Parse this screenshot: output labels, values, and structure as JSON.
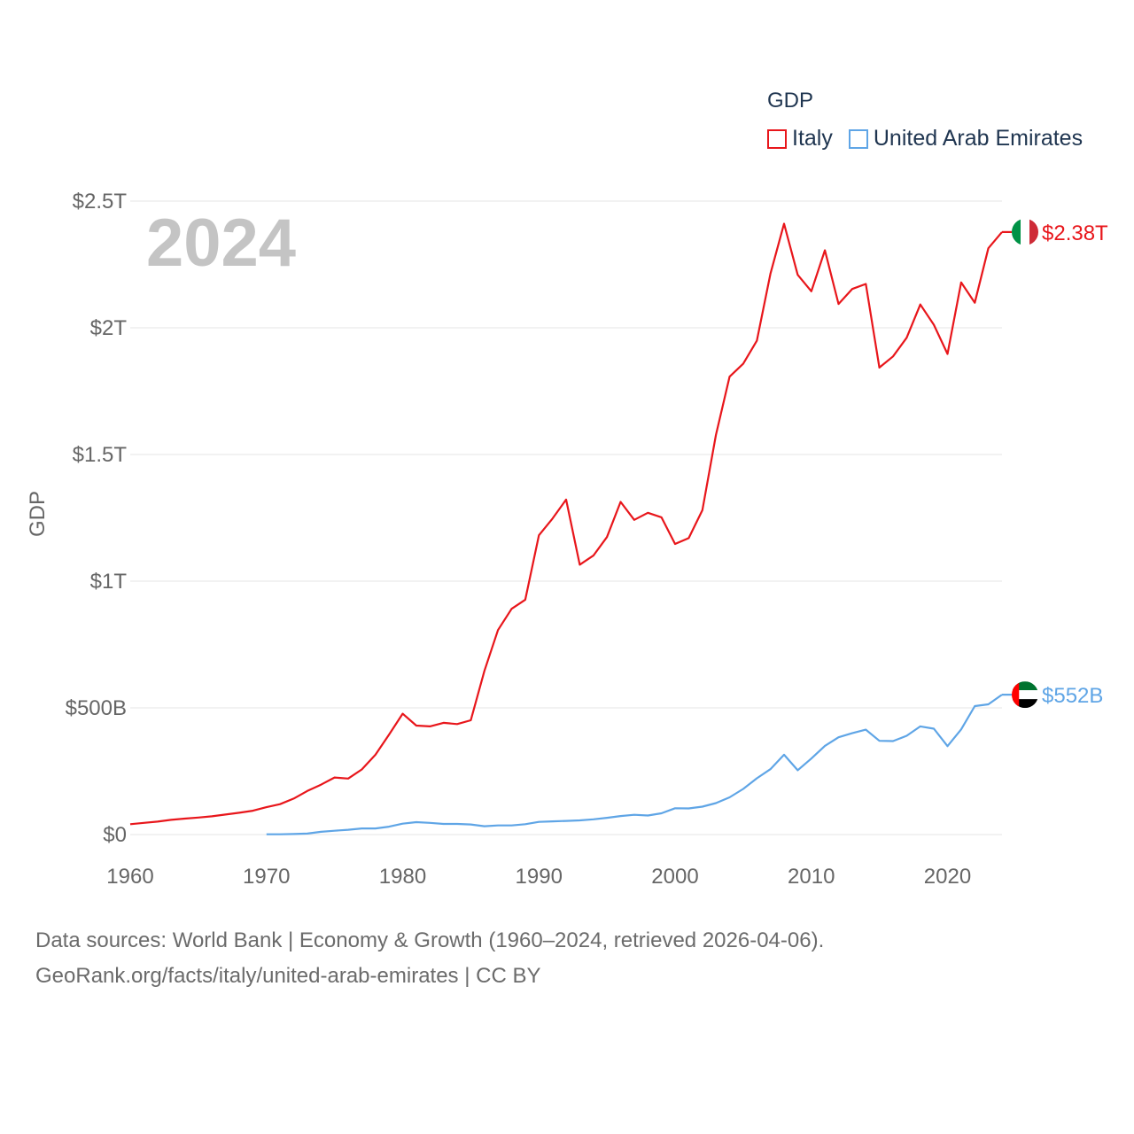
{
  "colors": {
    "italy": "#e8161b",
    "uae": "#5fa5e6",
    "axis_text": "#666666",
    "year_watermark": "#c4c4c4",
    "grid": "#e6e6e6"
  },
  "legend": {
    "title": "GDP",
    "items": [
      "Italy",
      "United Arab Emirates"
    ]
  },
  "source": {
    "line1": "Data sources: World Bank | Economy & Growth (1960–2024, retrieved 2026-04-06).",
    "line2": "GeoRank.org/facts/italy/united-arab-emirates | CC BY"
  },
  "chart_data": {
    "type": "line",
    "title": "GDP",
    "year_label": "2024",
    "xlabel": "",
    "ylabel": "GDP",
    "xlim": [
      1960,
      2024
    ],
    "ylim": [
      0,
      2.5
    ],
    "y_unit": "trillion USD",
    "x_ticks": [
      "1960",
      "1970",
      "1980",
      "1990",
      "2000",
      "2010",
      "2020"
    ],
    "y_ticks": [
      {
        "value": 0,
        "label": "$0"
      },
      {
        "value": 0.5,
        "label": "$500B"
      },
      {
        "value": 1,
        "label": "$1T"
      },
      {
        "value": 1.5,
        "label": "$1.5T"
      },
      {
        "value": 2,
        "label": "$2T"
      },
      {
        "value": 2.5,
        "label": "$2.5T"
      }
    ],
    "series": [
      {
        "name": "Italy",
        "key": "italy",
        "end_label": "$2.38T",
        "x": [
          1960,
          1961,
          1962,
          1963,
          1964,
          1965,
          1966,
          1967,
          1968,
          1969,
          1970,
          1971,
          1972,
          1973,
          1974,
          1975,
          1976,
          1977,
          1978,
          1979,
          1980,
          1981,
          1982,
          1983,
          1984,
          1985,
          1986,
          1987,
          1988,
          1989,
          1990,
          1991,
          1992,
          1993,
          1994,
          1995,
          1996,
          1997,
          1998,
          1999,
          2000,
          2001,
          2002,
          2003,
          2004,
          2005,
          2006,
          2007,
          2008,
          2009,
          2010,
          2011,
          2012,
          2013,
          2014,
          2015,
          2016,
          2017,
          2018,
          2019,
          2020,
          2021,
          2022,
          2023,
          2024
        ],
        "values": [
          0.041,
          0.046,
          0.051,
          0.058,
          0.063,
          0.067,
          0.072,
          0.079,
          0.086,
          0.094,
          0.108,
          0.12,
          0.142,
          0.172,
          0.197,
          0.225,
          0.221,
          0.257,
          0.315,
          0.394,
          0.477,
          0.43,
          0.427,
          0.441,
          0.436,
          0.451,
          0.646,
          0.807,
          0.891,
          0.927,
          1.181,
          1.247,
          1.322,
          1.065,
          1.101,
          1.174,
          1.313,
          1.242,
          1.27,
          1.252,
          1.147,
          1.17,
          1.28,
          1.577,
          1.807,
          1.858,
          1.949,
          2.213,
          2.411,
          2.209,
          2.144,
          2.306,
          2.094,
          2.153,
          2.173,
          1.843,
          1.887,
          1.961,
          2.092,
          2.012,
          1.897,
          2.179,
          2.099,
          2.314,
          2.378
        ]
      },
      {
        "name": "United Arab Emirates",
        "key": "uae",
        "end_label": "$552B",
        "x": [
          1970,
          1971,
          1972,
          1973,
          1974,
          1975,
          1976,
          1977,
          1978,
          1979,
          1980,
          1981,
          1982,
          1983,
          1984,
          1985,
          1986,
          1987,
          1988,
          1989,
          1990,
          1991,
          1992,
          1993,
          1994,
          1995,
          1996,
          1997,
          1998,
          1999,
          2000,
          2001,
          2002,
          2003,
          2004,
          2005,
          2006,
          2007,
          2008,
          2009,
          2010,
          2011,
          2012,
          2013,
          2014,
          2015,
          2016,
          2017,
          2018,
          2019,
          2020,
          2021,
          2022,
          2023,
          2024
        ],
        "values": [
          0.001,
          0.001,
          0.002,
          0.004,
          0.011,
          0.015,
          0.019,
          0.024,
          0.024,
          0.031,
          0.043,
          0.049,
          0.046,
          0.042,
          0.042,
          0.04,
          0.033,
          0.036,
          0.036,
          0.041,
          0.05,
          0.052,
          0.054,
          0.056,
          0.06,
          0.066,
          0.073,
          0.078,
          0.075,
          0.084,
          0.104,
          0.103,
          0.11,
          0.124,
          0.147,
          0.18,
          0.222,
          0.258,
          0.315,
          0.254,
          0.3,
          0.35,
          0.384,
          0.4,
          0.414,
          0.37,
          0.369,
          0.39,
          0.427,
          0.418,
          0.349,
          0.415,
          0.507,
          0.514,
          0.552
        ]
      }
    ]
  }
}
